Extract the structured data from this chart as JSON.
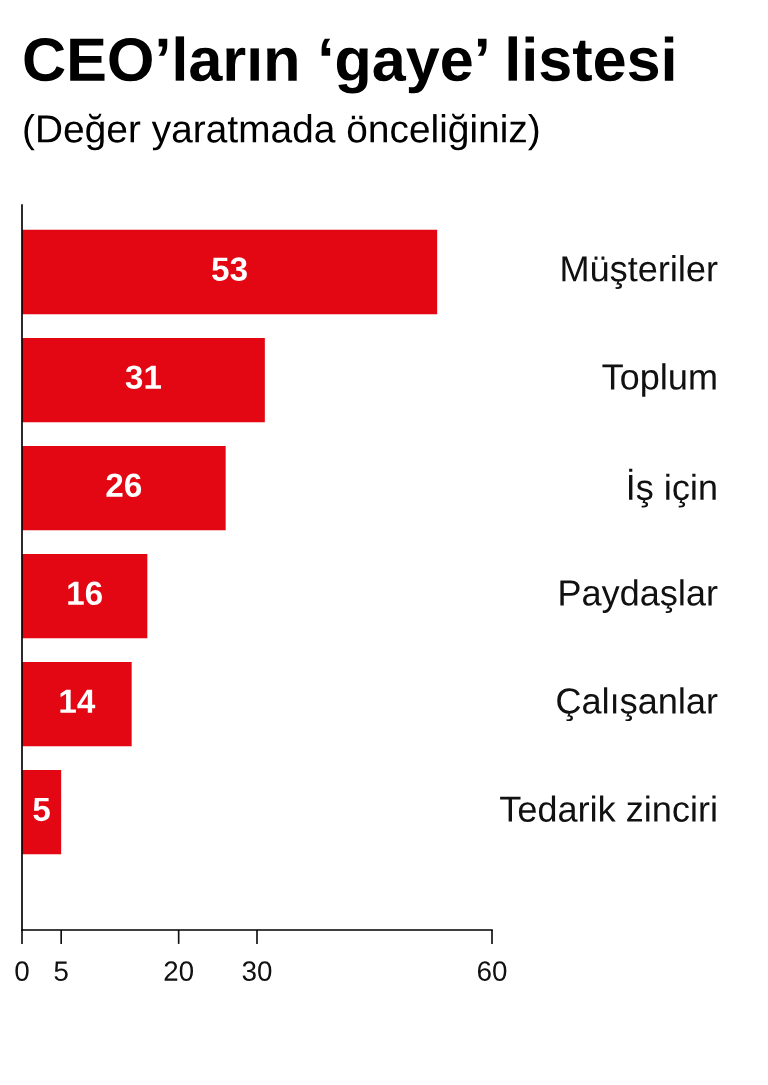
{
  "chart_data": {
    "type": "bar",
    "orientation": "horizontal",
    "title": "CEO’ların ‘gaye’ listesi",
    "subtitle": "(Değer yaratmada önceliğiniz)",
    "categories": [
      "Müşteriler",
      "Toplum",
      "İş için",
      "Paydaşlar",
      "Çalışanlar",
      "Tedarik zinciri"
    ],
    "values": [
      53,
      31,
      26,
      16,
      14,
      5
    ],
    "color": "#e30613",
    "xlim": [
      0,
      60
    ],
    "xticks": [
      0,
      5,
      20,
      30,
      60
    ],
    "data_labels": true,
    "grid": false,
    "legend": false
  }
}
